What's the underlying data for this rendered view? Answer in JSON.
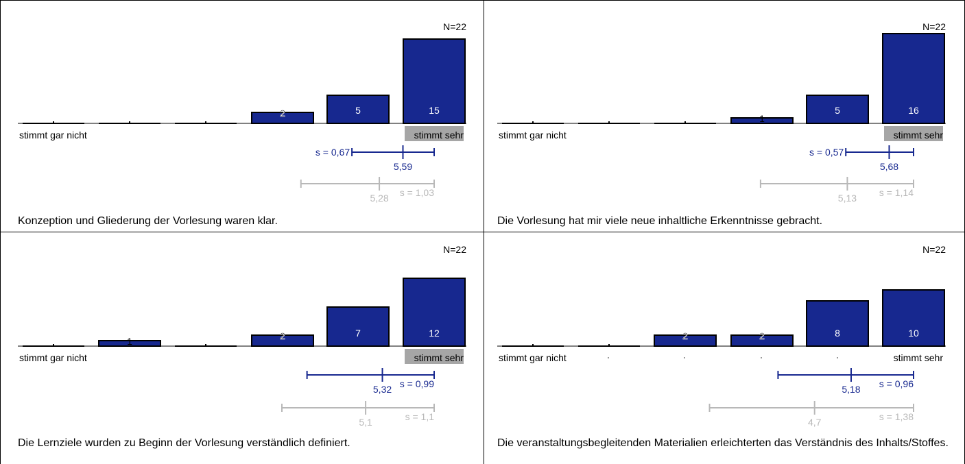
{
  "colors": {
    "bar": "#17288f",
    "mean_line": "#17288f",
    "ref_line": "#b8b8b8",
    "highlight_bg": "#a6a6a6",
    "border": "#000000"
  },
  "chart_data": [
    {
      "type": "bar",
      "categories": [
        "1",
        "2",
        "3",
        "4",
        "5",
        "6"
      ],
      "values": [
        0,
        0,
        0,
        2,
        5,
        15
      ],
      "value_labels": [
        "",
        "",
        "",
        "2",
        "5",
        "15"
      ],
      "n_label": "N=22",
      "left_label": "stimmt gar nicht",
      "right_label": "stimmt sehr",
      "right_label_highlighted": true,
      "mean": {
        "value": 5.59,
        "label": "5,59",
        "sd": 0.67,
        "sd_label": "s = 0,67",
        "sd_label_side": "left"
      },
      "reference": {
        "value": 5.28,
        "label": "5,28",
        "sd": 1.03,
        "sd_label": "s = 1,03"
      },
      "question": "Konzeption und Gliederung der Vorlesung waren klar."
    },
    {
      "type": "bar",
      "categories": [
        "1",
        "2",
        "3",
        "4",
        "5",
        "6"
      ],
      "values": [
        0,
        0,
        0,
        1,
        5,
        16
      ],
      "value_labels": [
        "",
        "",
        "",
        "1",
        "5",
        "16"
      ],
      "n_label": "N=22",
      "left_label": "stimmt gar nicht",
      "right_label": "stimmt sehr",
      "right_label_highlighted": true,
      "mean": {
        "value": 5.68,
        "label": "5,68",
        "sd": 0.57,
        "sd_label": "s = 0,57",
        "sd_label_side": "left"
      },
      "reference": {
        "value": 5.13,
        "label": "5,13",
        "sd": 1.14,
        "sd_label": "s = 1,14"
      },
      "question": "Die Vorlesung hat mir viele neue inhaltliche Erkenntnisse gebracht."
    },
    {
      "type": "bar",
      "categories": [
        "1",
        "2",
        "3",
        "4",
        "5",
        "6"
      ],
      "values": [
        0,
        1,
        0,
        2,
        7,
        12
      ],
      "value_labels": [
        "",
        "1",
        "",
        "2",
        "7",
        "12"
      ],
      "n_label": "N=22",
      "left_label": "stimmt gar nicht",
      "right_label": "stimmt sehr",
      "right_label_highlighted": true,
      "mean": {
        "value": 5.32,
        "label": "5,32",
        "sd": 0.99,
        "sd_label": "s = 0,99",
        "sd_label_side": "right"
      },
      "reference": {
        "value": 5.1,
        "label": "5,1",
        "sd": 1.1,
        "sd_label": "s = 1,1"
      },
      "question": "Die Lernziele wurden zu Beginn der Vorlesung verständlich definiert."
    },
    {
      "type": "bar",
      "categories": [
        "1",
        "2",
        "3",
        "4",
        "5",
        "6"
      ],
      "values": [
        0,
        0,
        2,
        2,
        8,
        10
      ],
      "value_labels": [
        "",
        "",
        "2",
        "2",
        "8",
        "10"
      ],
      "n_label": "N=22",
      "left_label": "stimmt gar nicht",
      "right_label": "stimmt sehr",
      "right_label_highlighted": false,
      "mean": {
        "value": 5.18,
        "label": "5,18",
        "sd": 0.96,
        "sd_label": "s = 0,96",
        "sd_label_side": "right"
      },
      "reference": {
        "value": 4.7,
        "label": "4,7",
        "sd": 1.38,
        "sd_label": "s = 1,38"
      },
      "question": "Die veranstaltungsbegleitenden Materialien erleichterten das Verständnis des Inhalts/Stoffes."
    }
  ]
}
